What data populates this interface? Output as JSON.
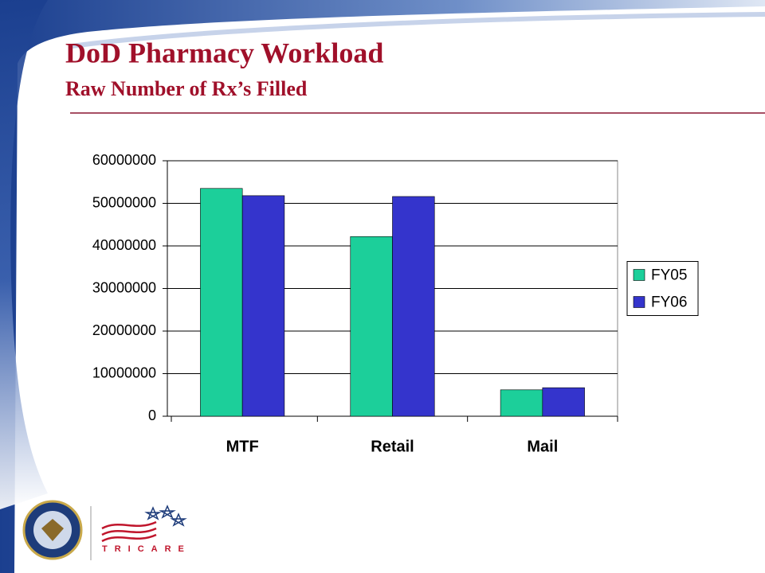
{
  "slide": {
    "title": "DoD Pharmacy Workload",
    "subtitle": "Raw Number of Rx’s Filled",
    "logo_text": "TRICARE"
  },
  "chart_data": {
    "type": "bar",
    "categories": [
      "MTF",
      "Retail",
      "Mail"
    ],
    "series": [
      {
        "name": "FY05",
        "color": "#1ccf9a",
        "values": [
          53500000,
          42200000,
          6200000
        ]
      },
      {
        "name": "FY06",
        "color": "#3434cc",
        "values": [
          51800000,
          51600000,
          6700000
        ]
      }
    ],
    "ylim": [
      0,
      60000000
    ],
    "yticks": [
      0,
      10000000,
      20000000,
      30000000,
      40000000,
      50000000,
      60000000
    ],
    "grid": true,
    "legend": "right"
  }
}
